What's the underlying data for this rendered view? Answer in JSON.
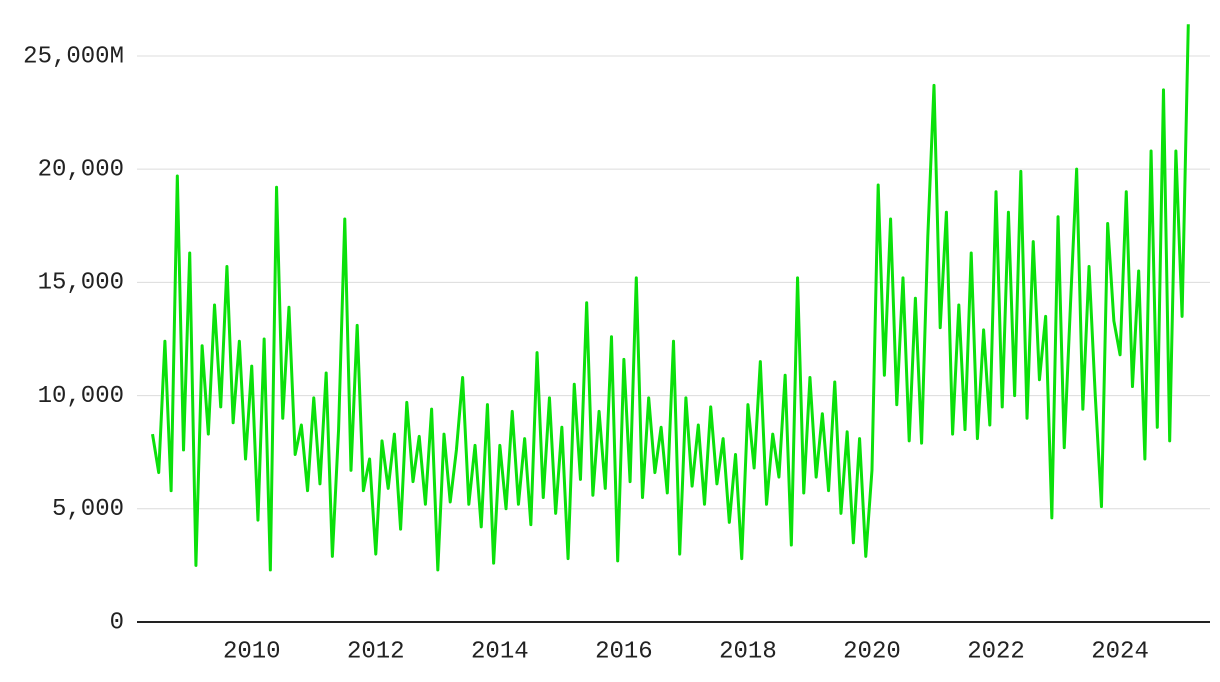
{
  "chart_data": {
    "type": "line",
    "x": [
      2008.4,
      2008.5,
      2008.6,
      2008.7,
      2008.8,
      2008.9,
      2009.0,
      2009.1,
      2009.2,
      2009.3,
      2009.4,
      2009.5,
      2009.6,
      2009.7,
      2009.8,
      2009.9,
      2010.0,
      2010.1,
      2010.2,
      2010.3,
      2010.4,
      2010.5,
      2010.6,
      2010.7,
      2010.8,
      2010.9,
      2011.0,
      2011.1,
      2011.2,
      2011.3,
      2011.4,
      2011.5,
      2011.6,
      2011.7,
      2011.8,
      2011.9,
      2012.0,
      2012.1,
      2012.2,
      2012.3,
      2012.4,
      2012.5,
      2012.6,
      2012.7,
      2012.8,
      2012.9,
      2013.0,
      2013.1,
      2013.2,
      2013.3,
      2013.4,
      2013.5,
      2013.6,
      2013.7,
      2013.8,
      2013.9,
      2014.0,
      2014.1,
      2014.2,
      2014.3,
      2014.4,
      2014.5,
      2014.6,
      2014.7,
      2014.8,
      2014.9,
      2015.0,
      2015.1,
      2015.2,
      2015.3,
      2015.4,
      2015.5,
      2015.6,
      2015.7,
      2015.8,
      2015.9,
      2016.0,
      2016.1,
      2016.2,
      2016.3,
      2016.4,
      2016.5,
      2016.6,
      2016.7,
      2016.8,
      2016.9,
      2017.0,
      2017.1,
      2017.2,
      2017.3,
      2017.4,
      2017.5,
      2017.6,
      2017.7,
      2017.8,
      2017.9,
      2018.0,
      2018.1,
      2018.2,
      2018.3,
      2018.4,
      2018.5,
      2018.6,
      2018.7,
      2018.8,
      2018.9,
      2019.0,
      2019.1,
      2019.2,
      2019.3,
      2019.4,
      2019.5,
      2019.6,
      2019.7,
      2019.8,
      2019.9,
      2020.0,
      2020.1,
      2020.2,
      2020.3,
      2020.4,
      2020.5,
      2020.6,
      2020.7,
      2020.8,
      2020.9,
      2021.0,
      2021.1,
      2021.2,
      2021.3,
      2021.4,
      2021.5,
      2021.6,
      2021.7,
      2021.8,
      2021.9,
      2022.0,
      2022.1,
      2022.2,
      2022.3,
      2022.4,
      2022.5,
      2022.6,
      2022.7,
      2022.8,
      2022.9,
      2023.0,
      2023.1,
      2023.2,
      2023.3,
      2023.4,
      2023.5,
      2023.6,
      2023.7,
      2023.8,
      2023.9,
      2024.0,
      2024.1,
      2024.2,
      2024.3,
      2024.4,
      2024.5,
      2024.6,
      2024.7,
      2024.8,
      2024.9,
      2025.0,
      2025.1
    ],
    "values": [
      8300,
      6600,
      12400,
      5800,
      19700,
      7600,
      16300,
      2500,
      12200,
      8300,
      14000,
      9500,
      15700,
      8800,
      12400,
      7200,
      11300,
      4500,
      12500,
      2300,
      19200,
      9000,
      13900,
      7400,
      8700,
      5800,
      9900,
      6100,
      11000,
      2900,
      8500,
      17800,
      6700,
      13100,
      5800,
      7200,
      3000,
      8000,
      5900,
      8300,
      4100,
      9700,
      6200,
      8200,
      5200,
      9400,
      2300,
      8300,
      5300,
      7600,
      10800,
      5200,
      7800,
      4200,
      9600,
      2600,
      7800,
      5000,
      9300,
      5200,
      8100,
      4300,
      11900,
      5500,
      9900,
      4800,
      8600,
      2800,
      10500,
      6300,
      14100,
      5600,
      9300,
      5900,
      12600,
      2700,
      11600,
      6200,
      15200,
      5500,
      9900,
      6600,
      8600,
      5700,
      12400,
      3000,
      9900,
      6000,
      8700,
      5200,
      9500,
      6100,
      8100,
      4400,
      7400,
      2800,
      9600,
      6800,
      11500,
      5200,
      8300,
      6400,
      10900,
      3400,
      15200,
      5700,
      10800,
      6400,
      9200,
      5800,
      10600,
      4800,
      8400,
      3500,
      8100,
      2900,
      6700,
      19300,
      10900,
      17800,
      9600,
      15200,
      8000,
      14300,
      7900,
      17000,
      23700,
      13000,
      18100,
      8300,
      14000,
      8500,
      16300,
      8100,
      12900,
      8700,
      19000,
      9500,
      18100,
      10000,
      19900,
      9000,
      16800,
      10700,
      13500,
      4600,
      17900,
      7700,
      14000,
      20000,
      9400,
      15700,
      10000,
      5100,
      17600,
      13300,
      11800,
      19000,
      10400,
      15500,
      7200,
      20800,
      8600,
      23500,
      8000,
      20800,
      13500,
      26400
    ],
    "color": "#0be00b",
    "xlim": [
      2008.15,
      2025.45
    ],
    "xticks": [
      2010,
      2012,
      2014,
      2016,
      2018,
      2020,
      2022,
      2024
    ],
    "ylim": [
      0,
      26500
    ],
    "yticks": [
      0,
      {
        "value": 5000,
        "label": "5,000"
      },
      {
        "value": 10000,
        "label": "10,000"
      },
      {
        "value": 15000,
        "label": "15,000"
      },
      {
        "value": 20000,
        "label": "20,000"
      },
      {
        "value": 25000,
        "label": "25,000M"
      }
    ],
    "grid": true
  }
}
